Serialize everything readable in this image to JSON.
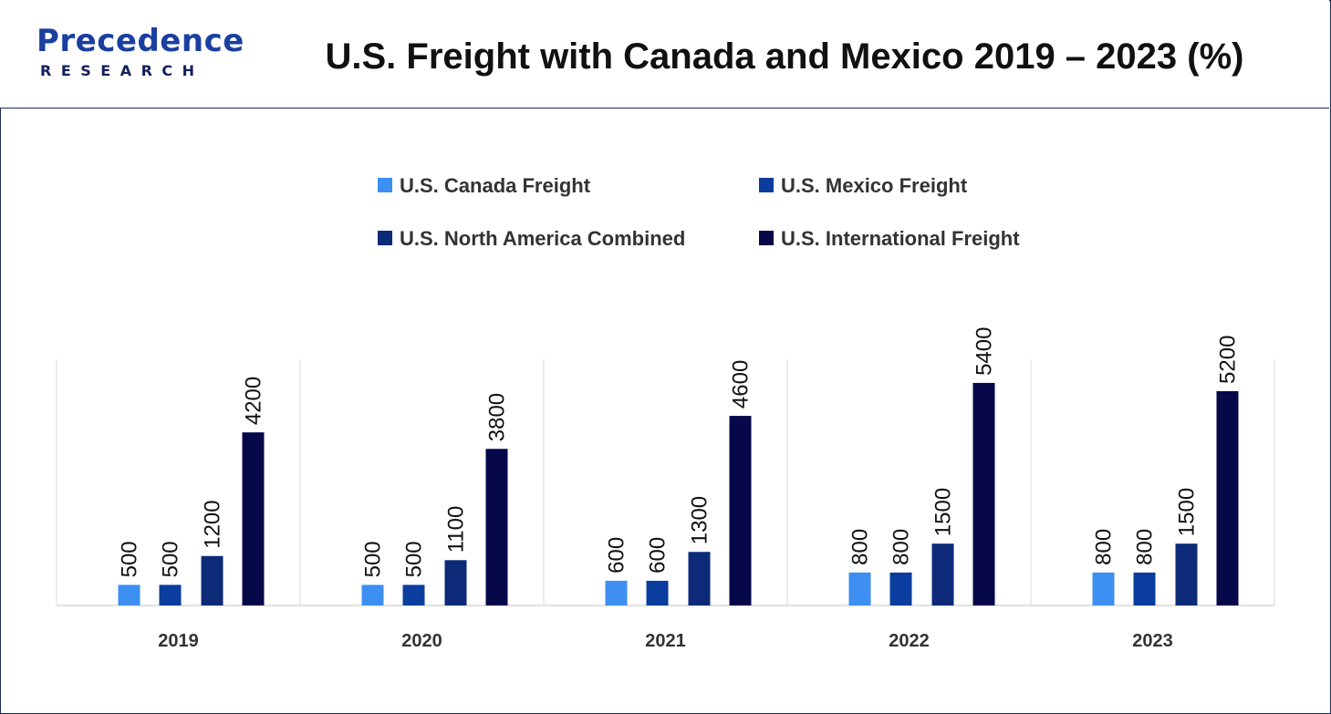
{
  "header": {
    "logo": {
      "main": "Precedence",
      "sub": "RESEARCH"
    },
    "title": "U.S. Freight with Canada and Mexico 2019 – 2023 (%)"
  },
  "colors": {
    "border": "#1f2a5a",
    "series": [
      "#3d8ff2",
      "#0b3d9e",
      "#0d2a78",
      "#07084a"
    ],
    "axis": "#d9d9d9"
  },
  "chart_data": {
    "type": "bar",
    "title": "U.S. Freight with Canada and Mexico 2019 – 2023 (%)",
    "categories": [
      "2019",
      "2020",
      "2021",
      "2022",
      "2023"
    ],
    "series": [
      {
        "name": "U.S. Canada Freight",
        "values": [
          500,
          500,
          600,
          800,
          800
        ]
      },
      {
        "name": "U.S. Mexico Freight",
        "values": [
          500,
          500,
          600,
          800,
          800
        ]
      },
      {
        "name": "U.S. North America Combined",
        "values": [
          1200,
          1100,
          1300,
          1500,
          1500
        ]
      },
      {
        "name": "U.S. International Freight",
        "values": [
          4200,
          3800,
          4600,
          5400,
          5200
        ]
      }
    ],
    "ylim": [
      0,
      6000
    ],
    "grid": false,
    "legend": "top-center",
    "data_labels": true
  }
}
